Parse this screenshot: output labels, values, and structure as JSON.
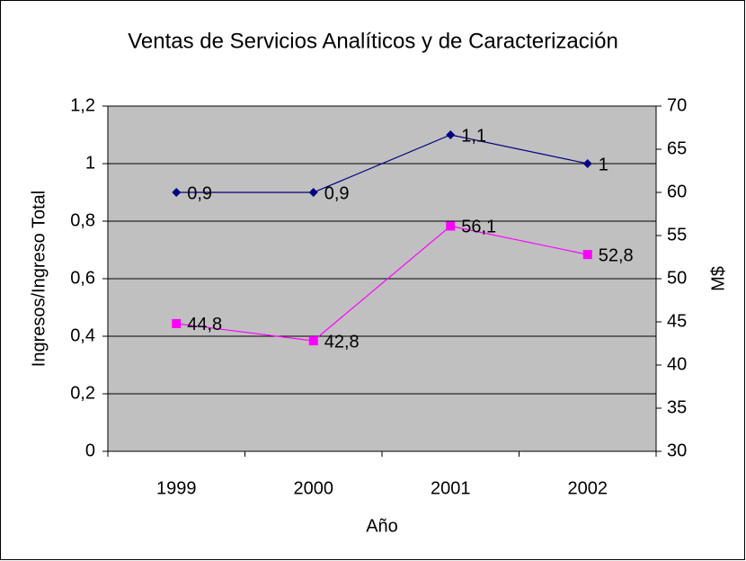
{
  "chart_data": {
    "type": "line",
    "title": "Ventas de Servicios Analíticos y de Caracterización",
    "x_label": "Año",
    "y_label": "Ingresos/Ingreso Total",
    "y2_label": "M$",
    "categories": [
      "1999",
      "2000",
      "2001",
      "2002"
    ],
    "series": [
      {
        "color": "#000080",
        "marker": "diamond",
        "values": [
          0.9,
          0.9,
          1.1,
          1
        ],
        "value_labels": [
          "0,9",
          "0,9",
          "1,1",
          "1"
        ]
      },
      {
        "color": "#ff00ff",
        "marker": "square",
        "axis": "y2",
        "values": [
          44.8,
          42.8,
          56.1,
          52.8
        ],
        "value_labels": [
          "44,8",
          "42,8",
          "56,1",
          "52,8"
        ]
      }
    ],
    "ylim": [
      0,
      1.2
    ],
    "yticks": [
      0,
      {
        "value": 0.2,
        "label": "0,2"
      },
      {
        "value": 0.4,
        "label": "0,4"
      },
      {
        "value": 0.6,
        "label": "0,6"
      },
      {
        "value": 0.8,
        "label": "0,8"
      },
      1,
      {
        "value": 1.2,
        "label": "1,2"
      }
    ],
    "y2lim": [
      30,
      70
    ],
    "y2ticks": [
      30,
      35,
      40,
      45,
      50,
      55,
      60,
      65,
      70
    ],
    "grid": true,
    "plot_background": "#c0c0c0"
  }
}
